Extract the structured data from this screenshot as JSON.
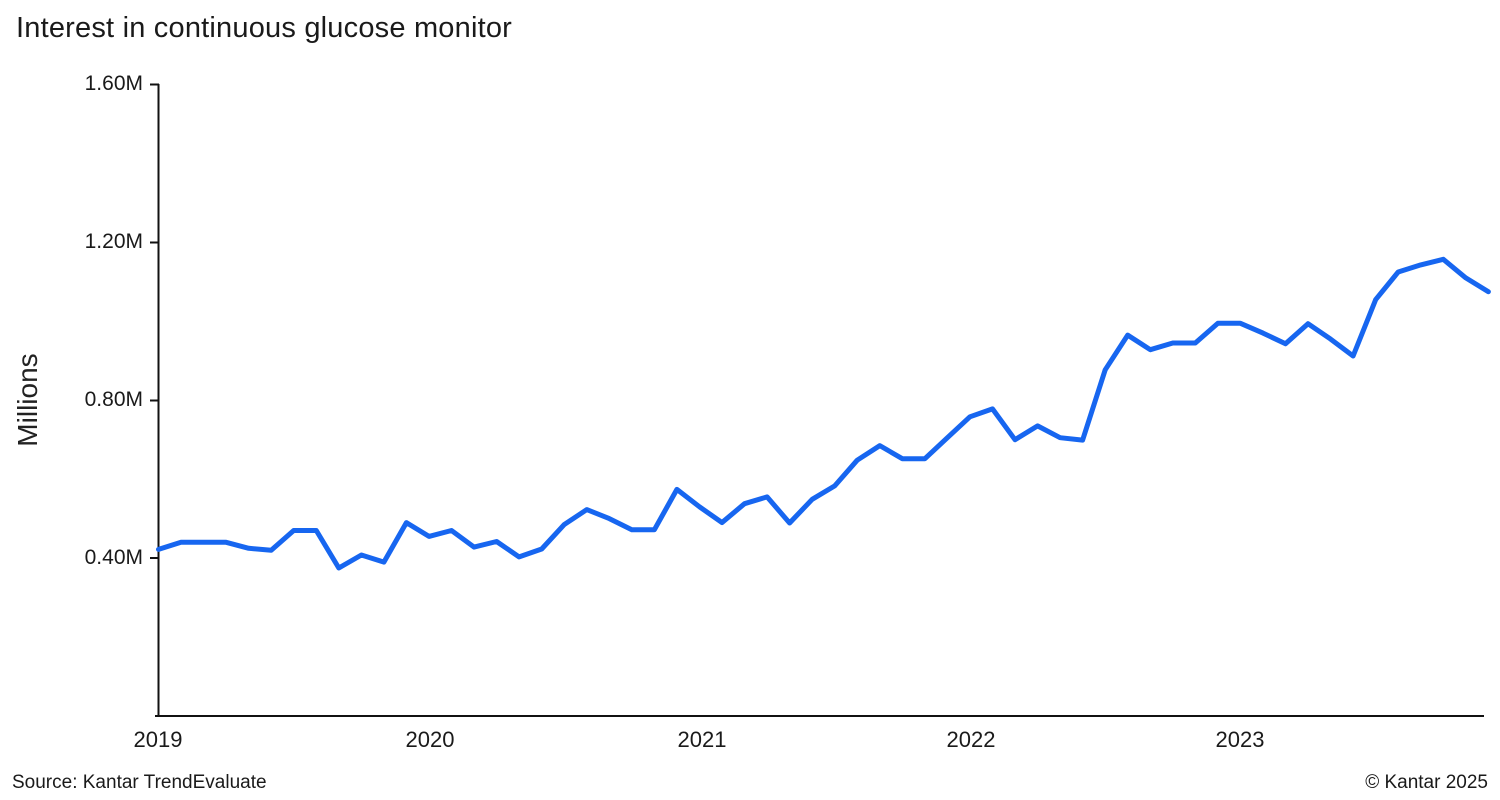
{
  "header": {
    "title": "Interest in continuous glucose monitor"
  },
  "y_axis": {
    "label": "Millions",
    "ticks": [
      {
        "label": "1.60M",
        "value": 1.6
      },
      {
        "label": "1.20M",
        "value": 1.2
      },
      {
        "label": "0.80M",
        "value": 0.8
      },
      {
        "label": "0.40M",
        "value": 0.4
      }
    ]
  },
  "x_axis": {
    "ticks": [
      {
        "label": "2019"
      },
      {
        "label": "2020"
      },
      {
        "label": "2021"
      },
      {
        "label": "2022"
      },
      {
        "label": "2023"
      }
    ]
  },
  "footer": {
    "source": "Source: Kantar TrendEvaluate",
    "copyright": "© Kantar 2025"
  },
  "chart_data": {
    "type": "line",
    "title": "Interest in continuous glucose monitor",
    "xlabel": "",
    "ylabel": "Millions",
    "unit": "millions",
    "ylim": [
      0,
      1.6
    ],
    "y_tick_labels": [
      "1.60M",
      "1.20M",
      "0.80M",
      "0.40M"
    ],
    "x_tick_labels": [
      "2019",
      "2020",
      "2021",
      "2022",
      "2023"
    ],
    "grid": false,
    "legend_position": "none",
    "line_color": "#1766F0",
    "axis_color": "#111111",
    "frequency": "monthly",
    "x": [
      "2019-01",
      "2019-02",
      "2019-03",
      "2019-04",
      "2019-05",
      "2019-06",
      "2019-07",
      "2019-08",
      "2019-09",
      "2019-10",
      "2019-11",
      "2019-12",
      "2020-01",
      "2020-02",
      "2020-03",
      "2020-04",
      "2020-05",
      "2020-06",
      "2020-07",
      "2020-08",
      "2020-09",
      "2020-10",
      "2020-11",
      "2020-12",
      "2021-01",
      "2021-02",
      "2021-03",
      "2021-04",
      "2021-05",
      "2021-06",
      "2021-07",
      "2021-08",
      "2021-09",
      "2021-10",
      "2021-11",
      "2021-12",
      "2022-01",
      "2022-02",
      "2022-03",
      "2022-04",
      "2022-05",
      "2022-06",
      "2022-07",
      "2022-08",
      "2022-09",
      "2022-10",
      "2022-11",
      "2022-12",
      "2023-01",
      "2023-02",
      "2023-03",
      "2023-04",
      "2023-05",
      "2023-06",
      "2023-07",
      "2023-08",
      "2023-09",
      "2023-10",
      "2023-11",
      "2023-12"
    ],
    "series": [
      {
        "name": "Interest in continuous glucose monitor",
        "values": [
          0.422,
          0.44,
          0.44,
          0.44,
          0.425,
          0.42,
          0.47,
          0.47,
          0.375,
          0.408,
          0.39,
          0.49,
          0.455,
          0.47,
          0.428,
          0.442,
          0.403,
          0.423,
          0.485,
          0.523,
          0.5,
          0.472,
          0.472,
          0.574,
          0.53,
          0.49,
          0.538,
          0.555,
          0.489,
          0.549,
          0.583,
          0.648,
          0.685,
          0.652,
          0.652,
          0.705,
          0.758,
          0.778,
          0.7,
          0.735,
          0.705,
          0.699,
          0.877,
          0.965,
          0.928,
          0.945,
          0.945,
          0.995,
          0.995,
          0.97,
          0.943,
          0.994,
          0.955,
          0.912,
          1.055,
          1.125,
          1.143,
          1.157,
          1.11,
          1.075
        ]
      }
    ]
  }
}
